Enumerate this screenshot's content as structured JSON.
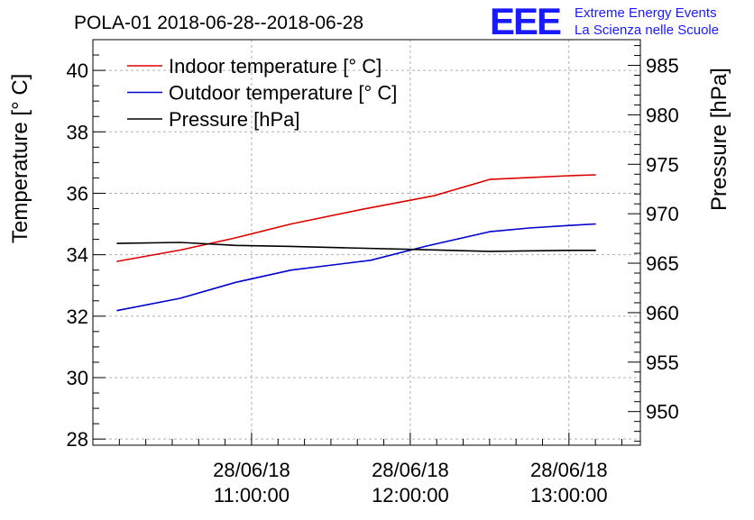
{
  "chart_data": {
    "type": "line",
    "title": "POLA-01 2018-06-28--2018-06-28",
    "brand": {
      "logo_text": "EEE",
      "line1": "Extreme Energy Events",
      "line2": "La Scienza nelle Scuole",
      "color": "#1a1aff"
    },
    "y_left": {
      "label": "Temperature [° C]",
      "lim": [
        27.8,
        41.0
      ],
      "ticks": [
        28,
        30,
        32,
        34,
        36,
        38,
        40
      ]
    },
    "y_right": {
      "label": "Pressure [hPa]",
      "lim": [
        946.6,
        987.6
      ],
      "ticks": [
        950,
        955,
        960,
        965,
        970,
        975,
        980,
        985
      ]
    },
    "x": {
      "lim_hours": [
        10.0,
        13.45
      ],
      "ticks": [
        {
          "hour": 11,
          "date": "28/06/18",
          "time": "11:00:00"
        },
        {
          "hour": 12,
          "date": "28/06/18",
          "time": "12:00:00"
        },
        {
          "hour": 13,
          "date": "28/06/18",
          "time": "13:00:00"
        }
      ]
    },
    "grid": true,
    "legend": {
      "position": "top-left"
    },
    "series": [
      {
        "name": "Indoor temperature [° C]",
        "axis": "left",
        "color": "#dd0000",
        "x_hours": [
          10.15,
          10.55,
          10.9,
          11.25,
          11.7,
          12.15,
          12.5,
          12.7,
          13.0,
          13.17
        ],
        "values": [
          33.78,
          34.15,
          34.55,
          35.0,
          35.48,
          35.92,
          36.45,
          36.5,
          36.57,
          36.6
        ]
      },
      {
        "name": "Outdoor temperature [° C]",
        "axis": "left",
        "color": "#0000cc",
        "x_hours": [
          10.15,
          10.55,
          10.9,
          11.25,
          11.75,
          12.1,
          12.5,
          12.75,
          13.0,
          13.17
        ],
        "values": [
          32.18,
          32.58,
          33.1,
          33.5,
          33.82,
          34.28,
          34.75,
          34.87,
          34.95,
          35.0
        ]
      },
      {
        "name": "Pressure [hPa]",
        "axis": "right",
        "color": "#000000",
        "x_hours": [
          10.15,
          10.55,
          10.9,
          11.25,
          11.6,
          12.0,
          12.5,
          13.0,
          13.17
        ],
        "values": [
          967.0,
          967.1,
          966.8,
          966.7,
          966.55,
          966.4,
          966.2,
          966.3,
          966.3
        ]
      }
    ]
  }
}
